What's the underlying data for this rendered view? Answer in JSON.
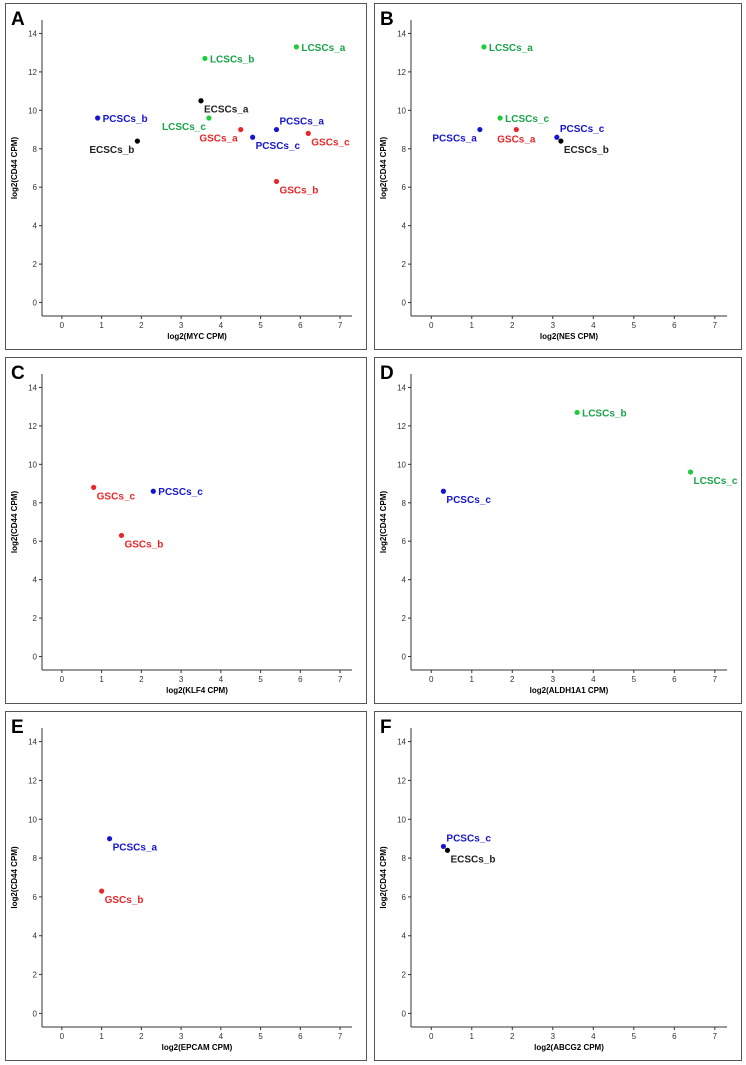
{
  "colors": {
    "ECSCs": "#000000",
    "GSCs": "#e8262b",
    "LCSCs_green": "#1fcc3a",
    "LCSCs_dark": "#1aa34a",
    "PCSCs": "#1515d0"
  },
  "chart_data": [
    {
      "panel": "A",
      "type": "scatter",
      "xlabel": "log2(MYC CPM)",
      "ylabel": "log2(CD44 CPM)",
      "xlim": [
        -0.5,
        7.3
      ],
      "ylim": [
        -0.7,
        14.7
      ],
      "xticks": [
        0,
        1,
        2,
        3,
        4,
        5,
        6,
        7
      ],
      "yticks": [
        0,
        2,
        4,
        6,
        8,
        10,
        12,
        14
      ],
      "points": [
        {
          "label": "LCSCs_a",
          "x": 5.9,
          "y": 13.3,
          "color": "#1fcc3a",
          "label_color": "#1aa34a",
          "label_pos": "right"
        },
        {
          "label": "LCSCs_b",
          "x": 3.6,
          "y": 12.7,
          "color": "#1fcc3a",
          "label_color": "#1aa34a",
          "label_pos": "right"
        },
        {
          "label": "ECSCs_a",
          "x": 3.5,
          "y": 10.5,
          "color": "#000000",
          "label_color": "#222222",
          "label_pos": "below-right"
        },
        {
          "label": "PCSCs_b",
          "x": 0.9,
          "y": 9.6,
          "color": "#1515d0",
          "label_color": "#1515d0",
          "label_pos": "right"
        },
        {
          "label": "LCSCs_c",
          "x": 3.7,
          "y": 9.6,
          "color": "#1fcc3a",
          "label_color": "#1aa34a",
          "label_pos": "below-left"
        },
        {
          "label": "PCSCs_a",
          "x": 5.4,
          "y": 9.0,
          "color": "#1515d0",
          "label_color": "#1515d0",
          "label_pos": "above-right"
        },
        {
          "label": "GSCs_a",
          "x": 4.5,
          "y": 9.0,
          "color": "#e8262b",
          "label_color": "#e8262b",
          "label_pos": "below-left"
        },
        {
          "label": "GSCs_c",
          "x": 6.2,
          "y": 8.8,
          "color": "#e8262b",
          "label_color": "#e8262b",
          "label_pos": "below-right"
        },
        {
          "label": "PCSCs_c",
          "x": 4.8,
          "y": 8.6,
          "color": "#1515d0",
          "label_color": "#1515d0",
          "label_pos": "below-right"
        },
        {
          "label": "ECSCs_b",
          "x": 1.9,
          "y": 8.4,
          "color": "#000000",
          "label_color": "#222222",
          "label_pos": "below-left"
        },
        {
          "label": "GSCs_b",
          "x": 5.4,
          "y": 6.3,
          "color": "#e8262b",
          "label_color": "#e8262b",
          "label_pos": "below-right"
        }
      ]
    },
    {
      "panel": "B",
      "type": "scatter",
      "xlabel": "log2(NES CPM)",
      "ylabel": "log2(CD44 CPM)",
      "xlim": [
        -0.5,
        7.3
      ],
      "ylim": [
        -0.7,
        14.7
      ],
      "xticks": [
        0,
        1,
        2,
        3,
        4,
        5,
        6,
        7
      ],
      "yticks": [
        0,
        2,
        4,
        6,
        8,
        10,
        12,
        14
      ],
      "points": [
        {
          "label": "LCSCs_a",
          "x": 1.3,
          "y": 13.3,
          "color": "#1fcc3a",
          "label_color": "#1aa34a",
          "label_pos": "right"
        },
        {
          "label": "LCSCs_c",
          "x": 1.7,
          "y": 9.6,
          "color": "#1fcc3a",
          "label_color": "#1aa34a",
          "label_pos": "right"
        },
        {
          "label": "PCSCs_a",
          "x": 1.2,
          "y": 9.0,
          "color": "#1515d0",
          "label_color": "#1515d0",
          "label_pos": "below-left"
        },
        {
          "label": "GSCs_a",
          "x": 2.1,
          "y": 9.0,
          "color": "#e8262b",
          "label_color": "#e8262b",
          "label_pos": "below"
        },
        {
          "label": "PCSCs_c",
          "x": 3.1,
          "y": 8.6,
          "color": "#1515d0",
          "label_color": "#1515d0",
          "label_pos": "above-right"
        },
        {
          "label": "ECSCs_b",
          "x": 3.2,
          "y": 8.4,
          "color": "#000000",
          "label_color": "#222222",
          "label_pos": "below-right"
        }
      ]
    },
    {
      "panel": "C",
      "type": "scatter",
      "xlabel": "log2(KLF4 CPM)",
      "ylabel": "log2(CD44 CPM)",
      "xlim": [
        -0.5,
        7.3
      ],
      "ylim": [
        -0.7,
        14.7
      ],
      "xticks": [
        0,
        1,
        2,
        3,
        4,
        5,
        6,
        7
      ],
      "yticks": [
        0,
        2,
        4,
        6,
        8,
        10,
        12,
        14
      ],
      "points": [
        {
          "label": "GSCs_c",
          "x": 0.8,
          "y": 8.8,
          "color": "#e8262b",
          "label_color": "#e8262b",
          "label_pos": "below-right"
        },
        {
          "label": "PCSCs_c",
          "x": 2.3,
          "y": 8.6,
          "color": "#1515d0",
          "label_color": "#1515d0",
          "label_pos": "right"
        },
        {
          "label": "GSCs_b",
          "x": 1.5,
          "y": 6.3,
          "color": "#e8262b",
          "label_color": "#e8262b",
          "label_pos": "below-right"
        }
      ]
    },
    {
      "panel": "D",
      "type": "scatter",
      "xlabel": "log2(ALDH1A1 CPM)",
      "ylabel": "log2(CD44 CPM)",
      "xlim": [
        -0.5,
        7.3
      ],
      "ylim": [
        -0.7,
        14.7
      ],
      "xticks": [
        0,
        1,
        2,
        3,
        4,
        5,
        6,
        7
      ],
      "yticks": [
        0,
        2,
        4,
        6,
        8,
        10,
        12,
        14
      ],
      "points": [
        {
          "label": "LCSCs_b",
          "x": 3.6,
          "y": 12.7,
          "color": "#1fcc3a",
          "label_color": "#1aa34a",
          "label_pos": "right"
        },
        {
          "label": "LCSCs_c",
          "x": 6.4,
          "y": 9.6,
          "color": "#1fcc3a",
          "label_color": "#1aa34a",
          "label_pos": "below-right"
        },
        {
          "label": "PCSCs_c",
          "x": 0.3,
          "y": 8.6,
          "color": "#1515d0",
          "label_color": "#1515d0",
          "label_pos": "below-right"
        }
      ]
    },
    {
      "panel": "E",
      "type": "scatter",
      "xlabel": "log2(EPCAM CPM)",
      "ylabel": "log2(CD44 CPM)",
      "xlim": [
        -0.5,
        7.3
      ],
      "ylim": [
        -0.7,
        14.7
      ],
      "xticks": [
        0,
        1,
        2,
        3,
        4,
        5,
        6,
        7
      ],
      "yticks": [
        0,
        2,
        4,
        6,
        8,
        10,
        12,
        14
      ],
      "points": [
        {
          "label": "PCSCs_a",
          "x": 1.2,
          "y": 9.0,
          "color": "#1515d0",
          "label_color": "#1515d0",
          "label_pos": "below-right"
        },
        {
          "label": "GSCs_b",
          "x": 1.0,
          "y": 6.3,
          "color": "#e8262b",
          "label_color": "#e8262b",
          "label_pos": "below-right"
        }
      ]
    },
    {
      "panel": "F",
      "type": "scatter",
      "xlabel": "log2(ABCG2 CPM)",
      "ylabel": "log2(CD44 CPM)",
      "xlim": [
        -0.5,
        7.3
      ],
      "ylim": [
        -0.7,
        14.7
      ],
      "xticks": [
        0,
        1,
        2,
        3,
        4,
        5,
        6,
        7
      ],
      "yticks": [
        0,
        2,
        4,
        6,
        8,
        10,
        12,
        14
      ],
      "points": [
        {
          "label": "PCSCs_c",
          "x": 0.3,
          "y": 8.6,
          "color": "#1515d0",
          "label_color": "#1515d0",
          "label_pos": "above-right"
        },
        {
          "label": "ECSCs_b",
          "x": 0.4,
          "y": 8.4,
          "color": "#000000",
          "label_color": "#222222",
          "label_pos": "below-right"
        }
      ]
    }
  ]
}
